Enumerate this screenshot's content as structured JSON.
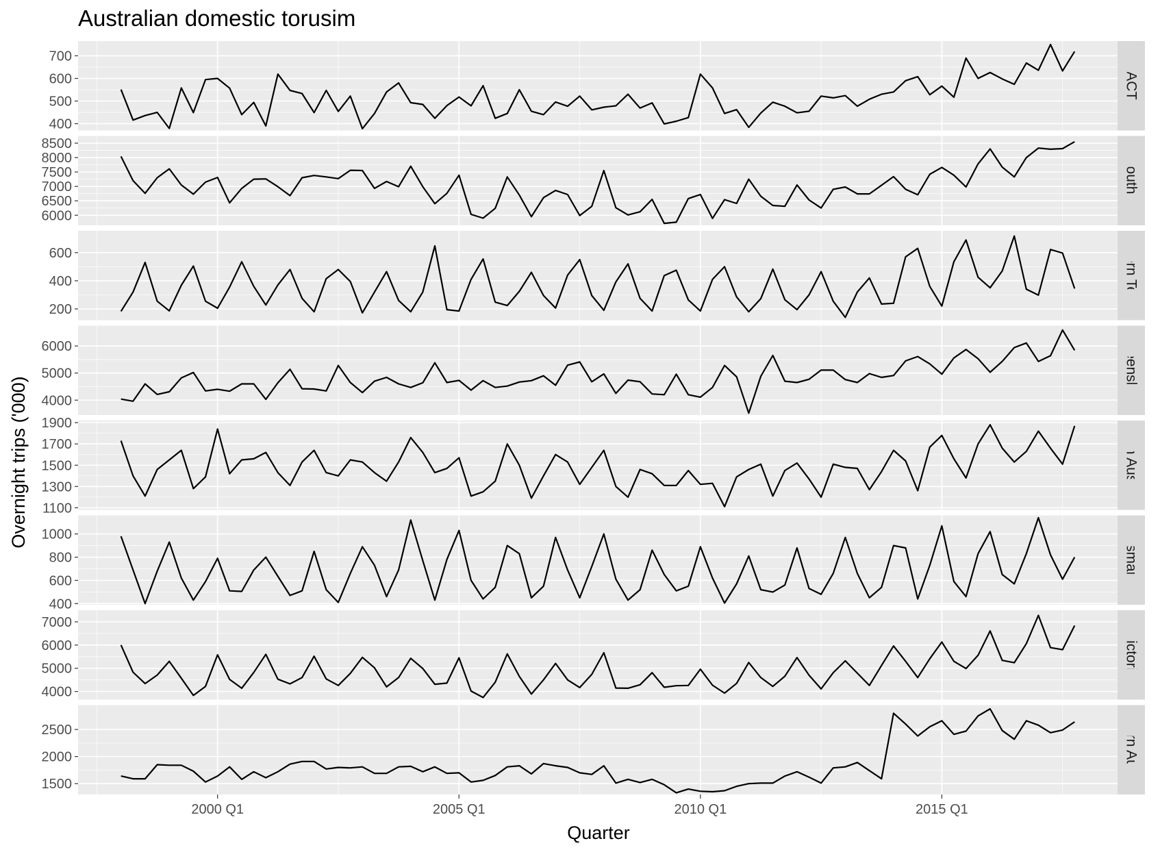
{
  "chart_data": {
    "type": "line",
    "title": "Australian domestic torusim",
    "xlabel": "Quarter",
    "ylabel": "Overnight trips ('000)",
    "x_start": "1998 Q1",
    "x_end": "2017 Q4",
    "x_ticks": [
      "2000 Q1",
      "2005 Q1",
      "2010 Q1",
      "2015 Q1"
    ],
    "grid": true,
    "legend": "none",
    "colors": {
      "panel_bg": "#ebebeb",
      "strip_bg": "#d9d9d9",
      "grid_major": "#ffffff",
      "line": "#000000"
    },
    "series": [
      {
        "name": "ACT",
        "ylim": [
          370,
          765
        ],
        "y_ticks": [
          400,
          500,
          600,
          700
        ],
        "values": [
          551,
          416,
          436,
          450,
          379,
          558,
          449,
          595,
          600,
          557,
          440,
          494,
          390,
          619,
          547,
          533,
          449,
          547,
          454,
          522,
          378,
          445,
          540,
          580,
          493,
          485,
          424,
          480,
          518,
          479,
          568,
          424,
          445,
          550,
          455,
          440,
          496,
          477,
          522,
          461,
          473,
          479,
          530,
          469,
          492,
          399,
          411,
          427,
          619,
          558,
          445,
          462,
          384,
          447,
          495,
          477,
          448,
          455,
          522,
          514,
          524,
          477,
          508,
          530,
          540,
          590,
          608,
          528,
          566,
          517,
          690,
          600,
          626,
          598,
          574,
          668,
          636,
          750,
          633,
          719
        ]
      },
      {
        "name": "New South Wales",
        "ylim": [
          5650,
          8750
        ],
        "y_ticks": [
          6000,
          6500,
          7000,
          7500,
          8000,
          8500
        ],
        "values": [
          8040,
          7200,
          6760,
          7300,
          7610,
          7050,
          6730,
          7150,
          7310,
          6430,
          6930,
          7250,
          7260,
          6990,
          6680,
          7300,
          7380,
          7330,
          7270,
          7560,
          7550,
          6930,
          7170,
          6990,
          7700,
          6990,
          6400,
          6760,
          7390,
          6030,
          5900,
          6240,
          7330,
          6700,
          5950,
          6610,
          6860,
          6720,
          5990,
          6310,
          7550,
          6260,
          6010,
          6120,
          6550,
          5720,
          5760,
          6580,
          6720,
          5890,
          6540,
          6410,
          7250,
          6660,
          6340,
          6310,
          7050,
          6530,
          6250,
          6900,
          6980,
          6740,
          6740,
          7040,
          7340,
          6900,
          6710,
          7420,
          7660,
          7390,
          6980,
          7780,
          8300,
          7670,
          7330,
          8000,
          8330,
          8290,
          8310,
          8550
        ]
      },
      {
        "name": "Northern Territory",
        "ylim": [
          120,
          755
        ],
        "y_ticks": [
          200,
          400,
          600
        ],
        "values": [
          183,
          320,
          530,
          255,
          186,
          368,
          505,
          255,
          205,
          355,
          535,
          360,
          228,
          370,
          480,
          275,
          180,
          415,
          480,
          395,
          172,
          320,
          465,
          260,
          180,
          320,
          648,
          195,
          185,
          410,
          555,
          248,
          224,
          325,
          460,
          295,
          206,
          440,
          550,
          295,
          190,
          392,
          520,
          275,
          185,
          437,
          475,
          264,
          185,
          410,
          500,
          285,
          180,
          273,
          483,
          265,
          195,
          300,
          465,
          255,
          140,
          320,
          420,
          235,
          240,
          570,
          630,
          360,
          220,
          535,
          690,
          425,
          350,
          470,
          718,
          340,
          298,
          622,
          597,
          345
        ]
      },
      {
        "name": "Queensland",
        "ylim": [
          3450,
          6750
        ],
        "y_ticks": [
          4000,
          5000,
          6000
        ],
        "values": [
          4040,
          3960,
          4600,
          4210,
          4310,
          4820,
          5020,
          4340,
          4400,
          4330,
          4600,
          4600,
          4030,
          4640,
          5140,
          4420,
          4410,
          4340,
          5280,
          4650,
          4280,
          4700,
          4840,
          4600,
          4470,
          4640,
          5380,
          4650,
          4730,
          4370,
          4720,
          4470,
          4520,
          4670,
          4720,
          4900,
          4550,
          5290,
          5410,
          4680,
          4970,
          4250,
          4740,
          4680,
          4230,
          4200,
          4960,
          4200,
          4110,
          4470,
          5280,
          4860,
          3520,
          4880,
          5650,
          4700,
          4650,
          4770,
          5110,
          5110,
          4760,
          4650,
          4980,
          4840,
          4910,
          5450,
          5610,
          5340,
          4960,
          5560,
          5870,
          5530,
          5030,
          5430,
          5940,
          6110,
          5430,
          5640,
          6590,
          5840
        ]
      },
      {
        "name": "South Australia",
        "ylim": [
          1080,
          1920
        ],
        "y_ticks": [
          1100,
          1300,
          1500,
          1700,
          1900
        ],
        "values": [
          1730,
          1400,
          1210,
          1460,
          1550,
          1640,
          1280,
          1390,
          1840,
          1420,
          1550,
          1560,
          1620,
          1430,
          1310,
          1530,
          1640,
          1430,
          1400,
          1550,
          1530,
          1430,
          1350,
          1530,
          1760,
          1620,
          1430,
          1470,
          1570,
          1210,
          1250,
          1350,
          1700,
          1500,
          1190,
          1400,
          1600,
          1530,
          1320,
          1480,
          1640,
          1300,
          1200,
          1460,
          1420,
          1310,
          1310,
          1450,
          1320,
          1330,
          1110,
          1390,
          1460,
          1510,
          1210,
          1450,
          1520,
          1370,
          1200,
          1510,
          1480,
          1470,
          1270,
          1440,
          1640,
          1540,
          1260,
          1670,
          1780,
          1560,
          1380,
          1700,
          1880,
          1660,
          1530,
          1630,
          1820,
          1660,
          1510,
          1870
        ]
      },
      {
        "name": "Tasmania",
        "ylim": [
          390,
          1160
        ],
        "y_ticks": [
          400,
          600,
          800,
          1000
        ],
        "values": [
          980,
          690,
          400,
          680,
          930,
          620,
          430,
          590,
          790,
          510,
          505,
          690,
          800,
          635,
          470,
          510,
          850,
          520,
          410,
          660,
          890,
          730,
          460,
          690,
          1120,
          770,
          430,
          780,
          1030,
          600,
          440,
          540,
          900,
          830,
          450,
          550,
          970,
          690,
          450,
          720,
          1000,
          610,
          430,
          520,
          860,
          650,
          510,
          550,
          890,
          620,
          405,
          570,
          810,
          520,
          500,
          560,
          880,
          530,
          480,
          660,
          970,
          660,
          450,
          540,
          900,
          880,
          440,
          730,
          1070,
          590,
          460,
          830,
          1020,
          650,
          570,
          830,
          1140,
          820,
          610,
          800
        ]
      },
      {
        "name": "Victoria",
        "ylim": [
          3650,
          7500
        ],
        "y_ticks": [
          4000,
          5000,
          6000,
          7000
        ],
        "values": [
          6000,
          4830,
          4340,
          4710,
          5300,
          4570,
          3830,
          4220,
          5580,
          4520,
          4140,
          4820,
          5600,
          4530,
          4330,
          4600,
          5520,
          4540,
          4260,
          4780,
          5470,
          5020,
          4200,
          4600,
          5430,
          4990,
          4310,
          4360,
          5450,
          4020,
          3740,
          4400,
          5620,
          4650,
          3890,
          4500,
          5210,
          4500,
          4170,
          4740,
          5670,
          4150,
          4140,
          4290,
          4810,
          4180,
          4250,
          4260,
          4960,
          4270,
          3930,
          4350,
          5250,
          4600,
          4220,
          4660,
          5460,
          4700,
          4110,
          4810,
          5320,
          4790,
          4260,
          5120,
          5960,
          5300,
          4600,
          5410,
          6130,
          5300,
          4990,
          5560,
          6610,
          5340,
          5240,
          6060,
          7280,
          5890,
          5800,
          6840
        ]
      },
      {
        "name": "Western Australia",
        "ylim": [
          1300,
          2950
        ],
        "y_ticks": [
          1500,
          2000,
          2500
        ],
        "values": [
          1640,
          1590,
          1590,
          1850,
          1840,
          1840,
          1730,
          1530,
          1640,
          1810,
          1580,
          1720,
          1610,
          1720,
          1860,
          1910,
          1910,
          1770,
          1800,
          1790,
          1810,
          1690,
          1690,
          1810,
          1820,
          1720,
          1810,
          1690,
          1700,
          1530,
          1560,
          1650,
          1810,
          1830,
          1680,
          1870,
          1830,
          1800,
          1700,
          1670,
          1830,
          1510,
          1580,
          1520,
          1580,
          1480,
          1330,
          1400,
          1360,
          1350,
          1370,
          1450,
          1500,
          1510,
          1510,
          1640,
          1720,
          1620,
          1510,
          1790,
          1810,
          1890,
          1740,
          1590,
          2800,
          2600,
          2380,
          2550,
          2660,
          2410,
          2470,
          2750,
          2880,
          2480,
          2320,
          2660,
          2580,
          2440,
          2490,
          2640
        ]
      }
    ]
  }
}
